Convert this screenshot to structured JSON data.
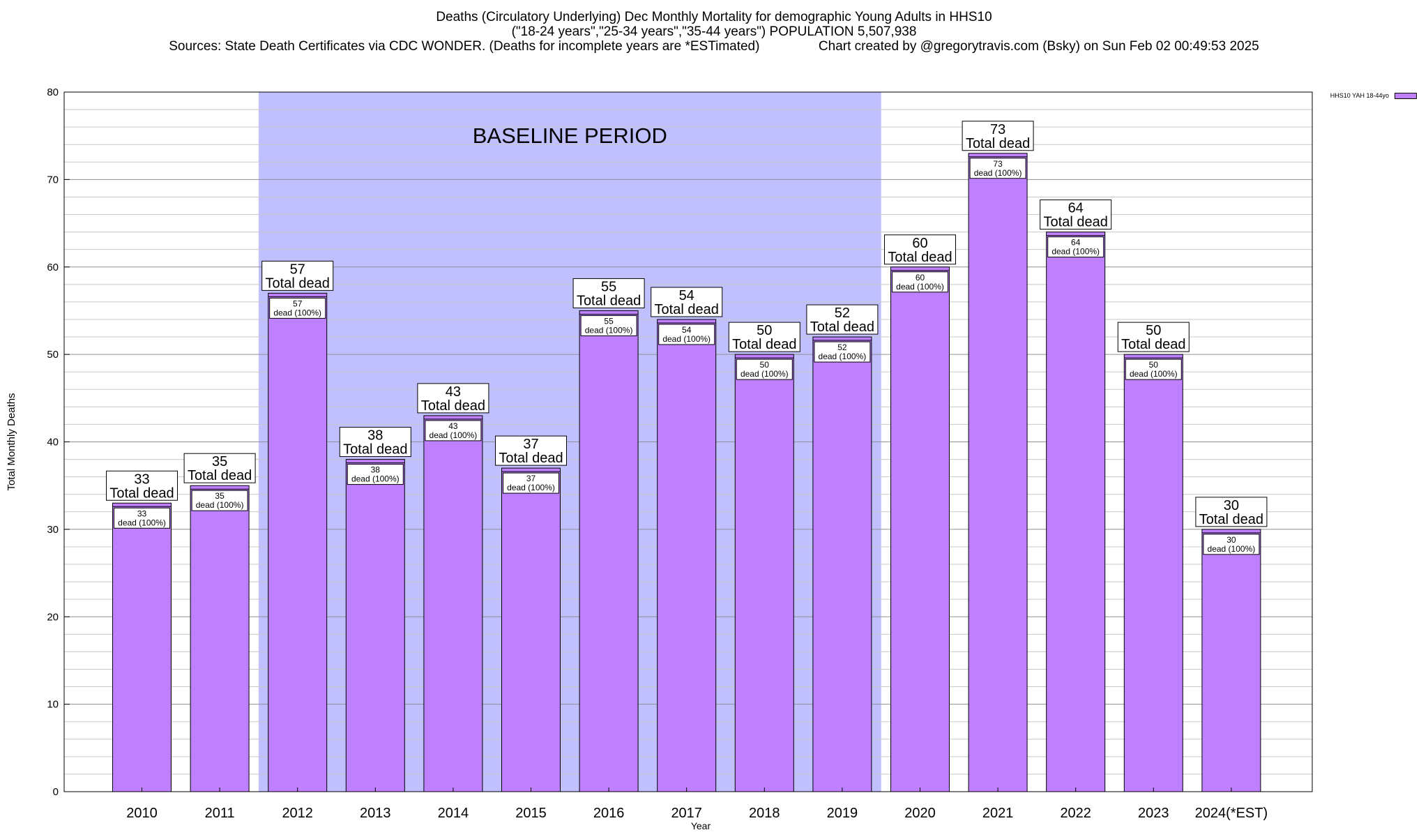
{
  "title": {
    "line1": "Deaths (Circulatory Underlying) Dec Monthly Mortality for demographic Young Adults in HHS10",
    "line2": "(\"18-24 years\",\"25-34 years\",\"35-44 years\") POPULATION 5,507,938",
    "line3": "Sources: State Death Certificates via CDC WONDER. (Deaths for incomplete years are *ESTimated)                Chart created by @gregorytravis.com (Bsky) on Sun Feb 02 00:49:53 2025"
  },
  "legend": {
    "label": "HHS10 YAH 18-44yo",
    "color": "#bf80ff"
  },
  "chart_data": {
    "type": "bar",
    "categories": [
      "2010",
      "2011",
      "2012",
      "2013",
      "2014",
      "2015",
      "2016",
      "2017",
      "2018",
      "2019",
      "2020",
      "2021",
      "2022",
      "2023",
      "2024(*EST)"
    ],
    "series": [
      {
        "name": "HHS10 YAH 18-44yo",
        "values": [
          33,
          35,
          57,
          38,
          43,
          37,
          55,
          54,
          50,
          52,
          60,
          73,
          64,
          50,
          30
        ]
      }
    ],
    "xlabel": "Year",
    "ylabel": "Total Monthly Deaths",
    "ylim": [
      0,
      80
    ],
    "yticks": [
      0,
      10,
      20,
      30,
      40,
      50,
      60,
      70,
      80
    ],
    "grid": true,
    "baseline_period": {
      "label": "BASELINE PERIOD",
      "from": "2012",
      "to": "2019",
      "color": "#c0c0ff"
    },
    "top_label_suffix": "Total dead",
    "inner_label_suffix": "dead (100%)",
    "bar_color": "#bf80ff",
    "legend_position": "top-right"
  }
}
